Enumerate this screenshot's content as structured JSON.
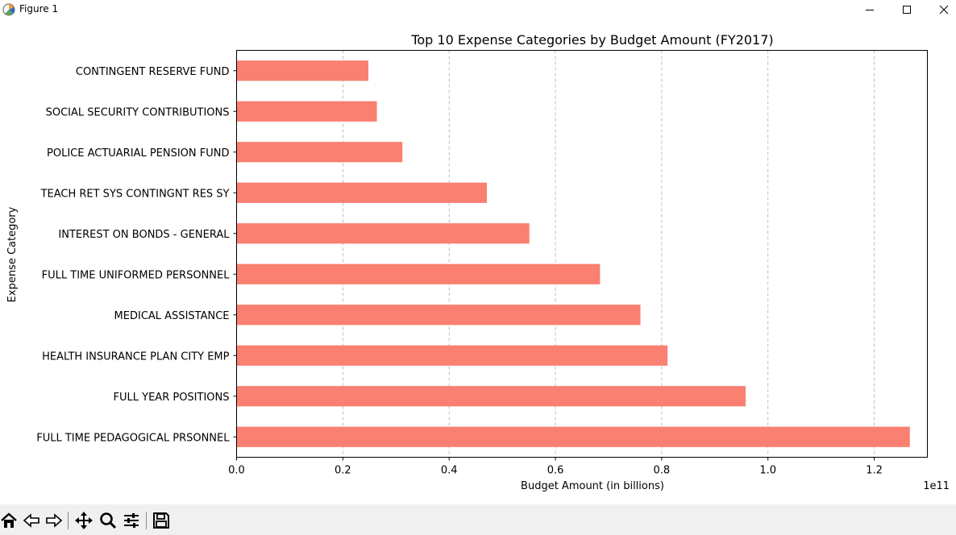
{
  "window": {
    "title": "Figure 1"
  },
  "toolbar": {
    "tools": [
      "home-icon",
      "back-icon",
      "forward-icon",
      "pan-icon",
      "zoom-icon",
      "configure-subplots-icon",
      "save-icon"
    ]
  },
  "colors": {
    "bar": "#fa8072",
    "grid": "#b0b0b0",
    "axis": "#000000"
  },
  "chart_data": {
    "type": "bar",
    "orientation": "horizontal",
    "title": "Top 10 Expense Categories by Budget Amount (FY2017)",
    "xlabel": "Budget Amount (in billions)",
    "ylabel": "Expense Category",
    "offset_text": "1e11",
    "xlim": [
      0,
      1.3
    ],
    "xticks": [
      0.0,
      0.2,
      0.4,
      0.6,
      0.8,
      1.0,
      1.2
    ],
    "xtick_labels": [
      "0.0",
      "0.2",
      "0.4",
      "0.6",
      "0.8",
      "1.0",
      "1.2"
    ],
    "grid": "x-dashed",
    "categories": [
      "FULL TIME PEDAGOGICAL PRSONNEL",
      "FULL YEAR POSITIONS",
      "HEALTH INSURANCE PLAN CITY EMP",
      "MEDICAL ASSISTANCE",
      "FULL TIME UNIFORMED PERSONNEL",
      "INTEREST ON BONDS - GENERAL",
      "TEACH RET SYS CONTINGNT RES SY",
      "POLICE ACTUARIAL PENSION FUND",
      "SOCIAL SECURITY CONTRIBUTIONS",
      "CONTINGENT RESERVE FUND"
    ],
    "values": [
      1.267,
      0.958,
      0.811,
      0.76,
      0.684,
      0.551,
      0.471,
      0.312,
      0.264,
      0.248
    ]
  }
}
